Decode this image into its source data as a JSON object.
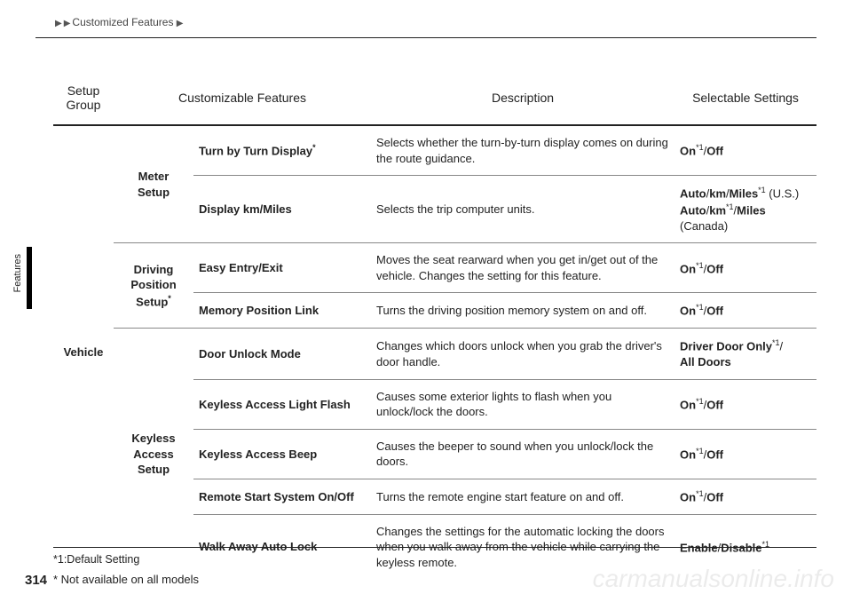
{
  "breadcrumb": "Customized Features",
  "sideTab": "Features",
  "pageNumber": "314",
  "watermark": "carmanualsonline.info",
  "headers": {
    "c1": "Setup\nGroup",
    "c2": "Customizable Features",
    "c3": "Description",
    "c4": "Selectable Settings"
  },
  "group": "Vehicle",
  "subgroups": {
    "meter": "Meter\nSetup",
    "driving": "Driving\nPosition\nSetup",
    "drivingSup": "*",
    "keyless": "Keyless\nAccess\nSetup"
  },
  "rows": {
    "r1": {
      "feat": "Turn by Turn Display",
      "featSup": "*",
      "desc": "Selects whether the turn-by-turn display comes on during the route guidance.",
      "set": "<b>On</b><span class='sup'>*1</span>/<b>Off</b>"
    },
    "r2": {
      "feat": "Display km/Miles",
      "desc": "Selects the trip computer units.",
      "set": "<b>Auto</b>/<b>km</b>/<b>Miles</b><span class='sup'>*1</span> (U.S.)<br><b>Auto</b>/<b>km</b><span class='sup'>*1</span>/<b>Miles</b> (Canada)"
    },
    "r3": {
      "feat": "Easy Entry/Exit",
      "desc": "Moves the seat rearward when you get in/get out of the vehicle. Changes the setting for this feature.",
      "set": "<b>On</b><span class='sup'>*1</span>/<b>Off</b>"
    },
    "r4": {
      "feat": "Memory Position Link",
      "desc": "Turns the driving position memory system on and off.",
      "set": "<b>On</b><span class='sup'>*1</span>/<b>Off</b>"
    },
    "r5": {
      "feat": "Door Unlock Mode",
      "desc": "Changes which doors unlock when you grab the driver's door handle.",
      "set": "<b>Driver Door Only</b><span class='sup'>*1</span>/<br><b>All Doors</b>"
    },
    "r6": {
      "feat": "Keyless Access Light Flash",
      "desc": "Causes some exterior lights to flash when you unlock/lock the doors.",
      "set": "<b>On</b><span class='sup'>*1</span>/<b>Off</b>"
    },
    "r7": {
      "feat": "Keyless Access Beep",
      "desc": "Causes the beeper to sound when you unlock/lock the doors.",
      "set": "<b>On</b><span class='sup'>*1</span>/<b>Off</b>"
    },
    "r8": {
      "feat": "Remote Start System On/Off",
      "desc": "Turns the remote engine start feature on and off.",
      "set": "<b>On</b><span class='sup'>*1</span>/<b>Off</b>"
    },
    "r9": {
      "feat": "Walk Away Auto Lock",
      "desc": "Changes the settings for the automatic locking the doors when you walk away from the vehicle while carrying the keyless remote.",
      "set": "<b>Enable</b>/<b>Disable</b><span class='sup'>*1</span>"
    }
  },
  "footnotes": {
    "f1": "*1:Default Setting",
    "f2": "* Not available on all models"
  }
}
